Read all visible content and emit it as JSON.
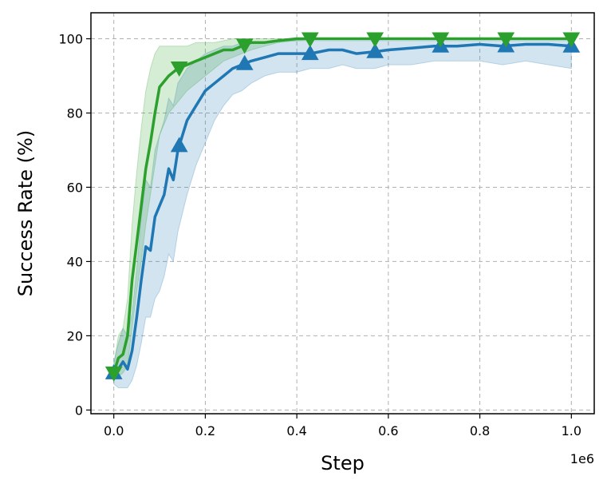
{
  "chart_data": {
    "type": "line",
    "xlabel": "Step",
    "ylabel": "Success Rate (%)",
    "x_offset_label": "1e6",
    "xlim": [
      -0.05,
      1.05
    ],
    "ylim": [
      -1,
      107
    ],
    "xticks": [
      0.0,
      0.2,
      0.4,
      0.6,
      0.8,
      1.0
    ],
    "xtick_labels": [
      "0.0",
      "0.2",
      "0.4",
      "0.6",
      "0.8",
      "1.0"
    ],
    "yticks": [
      0,
      20,
      40,
      60,
      80,
      100
    ],
    "ytick_labels": [
      "0",
      "20",
      "40",
      "60",
      "80",
      "100"
    ],
    "grid": true,
    "series": [
      {
        "color": "#2ca02c",
        "marker": "triangle-down",
        "markers_x": [
          0.0,
          0.143,
          0.286,
          0.429,
          0.571,
          0.714,
          0.857,
          1.0
        ],
        "x": [
          0.0,
          0.01,
          0.02,
          0.03,
          0.04,
          0.05,
          0.06,
          0.07,
          0.08,
          0.09,
          0.1,
          0.12,
          0.14,
          0.16,
          0.18,
          0.2,
          0.22,
          0.24,
          0.26,
          0.28,
          0.3,
          0.33,
          0.36,
          0.4,
          0.45,
          0.5,
          0.55,
          0.6,
          0.7,
          0.8,
          0.9,
          1.0
        ],
        "y": [
          10,
          14,
          15,
          20,
          35,
          45,
          55,
          65,
          72,
          80,
          87,
          90,
          92,
          93,
          94,
          95,
          96,
          97,
          97,
          98,
          99,
          99,
          99.5,
          100,
          100,
          100,
          100,
          100,
          100,
          100,
          100,
          100
        ],
        "lower": [
          8,
          9,
          10,
          12,
          22,
          32,
          40,
          50,
          58,
          66,
          74,
          80,
          83,
          86,
          88,
          90,
          92,
          94,
          95,
          96,
          97,
          98,
          99,
          99.5,
          100,
          100,
          100,
          100,
          100,
          100,
          100,
          100
        ],
        "upper": [
          12,
          20,
          22,
          30,
          50,
          64,
          76,
          86,
          92,
          96,
          98,
          98,
          98,
          98,
          99,
          99,
          99,
          99.5,
          100,
          100,
          100,
          100,
          100,
          100,
          100,
          100,
          100,
          100,
          100,
          100,
          100,
          100
        ]
      },
      {
        "color": "#1f77b4",
        "marker": "triangle-up",
        "markers_x": [
          0.0,
          0.143,
          0.286,
          0.429,
          0.571,
          0.714,
          0.857,
          1.0
        ],
        "x": [
          0.0,
          0.01,
          0.02,
          0.03,
          0.04,
          0.05,
          0.06,
          0.07,
          0.08,
          0.09,
          0.1,
          0.11,
          0.12,
          0.13,
          0.14,
          0.16,
          0.18,
          0.2,
          0.22,
          0.24,
          0.26,
          0.28,
          0.3,
          0.33,
          0.36,
          0.4,
          0.43,
          0.47,
          0.5,
          0.53,
          0.57,
          0.6,
          0.65,
          0.7,
          0.75,
          0.8,
          0.85,
          0.9,
          0.95,
          1.0
        ],
        "y": [
          10,
          11,
          13,
          11,
          16,
          25,
          35,
          44,
          43,
          52,
          55,
          58,
          65,
          62,
          70,
          78,
          82,
          86,
          88,
          90,
          92,
          93,
          94,
          95,
          96,
          96,
          96,
          97,
          97,
          96,
          96.5,
          97,
          97.5,
          98,
          98,
          98.5,
          98,
          98.5,
          98.5,
          98
        ],
        "lower": [
          7,
          6,
          6,
          6,
          8,
          12,
          18,
          25,
          25,
          30,
          32,
          36,
          42,
          40,
          48,
          58,
          66,
          72,
          78,
          82,
          85,
          86,
          88,
          90,
          91,
          91,
          92,
          92,
          93,
          92,
          92,
          93,
          93,
          94,
          94,
          94,
          93,
          94,
          93,
          92
        ],
        "upper": [
          13,
          18,
          22,
          20,
          26,
          38,
          52,
          62,
          60,
          70,
          74,
          78,
          84,
          82,
          88,
          92,
          94,
          96,
          97,
          98,
          98,
          99,
          99,
          99,
          99.5,
          99.5,
          99.5,
          99.5,
          99.5,
          99.5,
          99.5,
          99.5,
          99.5,
          99.5,
          99.5,
          99.5,
          99.5,
          99.5,
          99.5,
          99.5
        ]
      }
    ]
  }
}
